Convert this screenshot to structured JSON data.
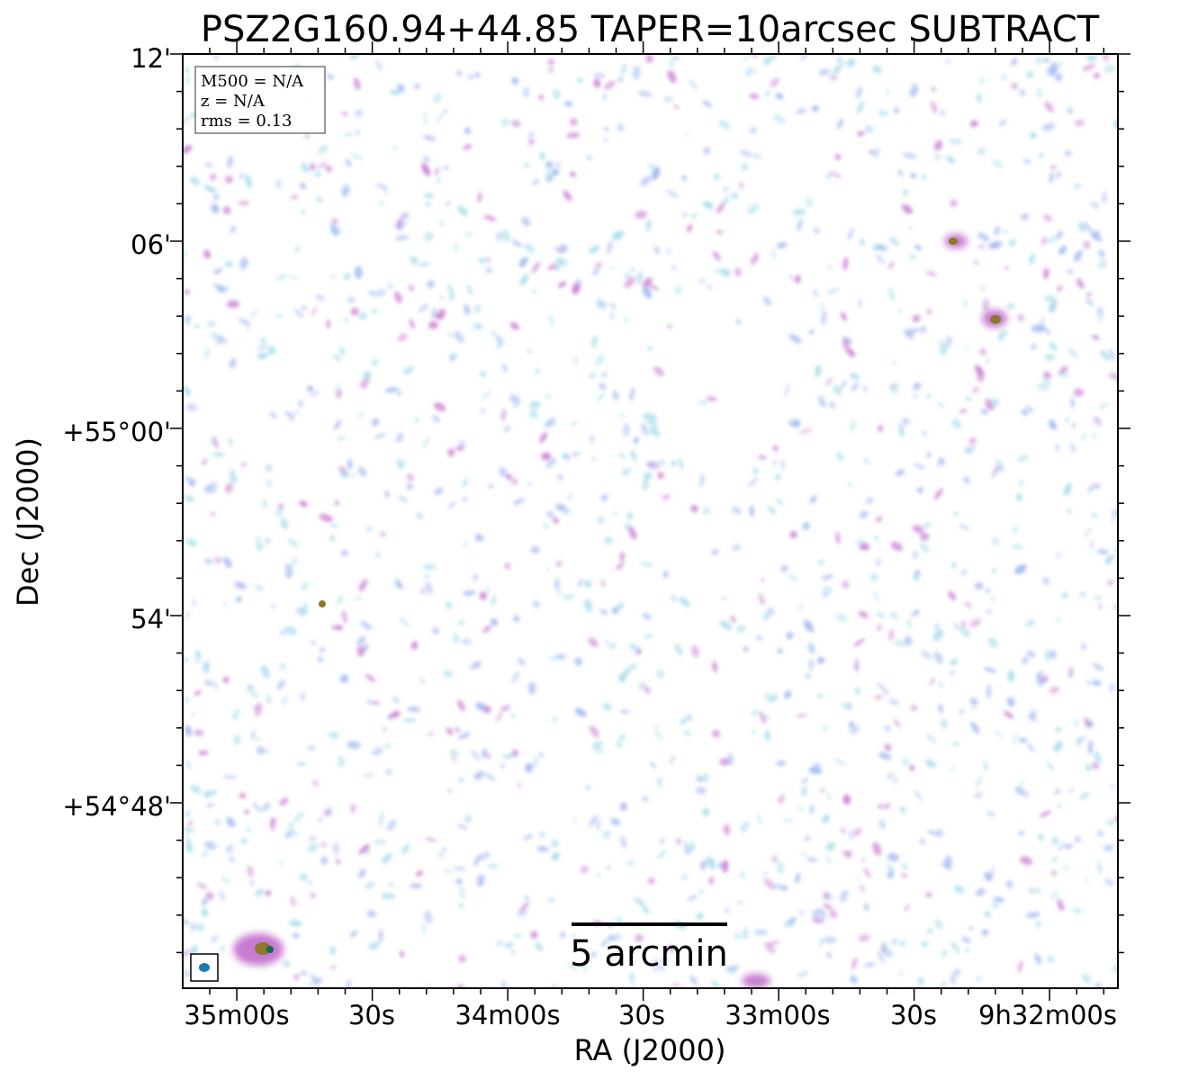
{
  "title": "PSZ2G160.94+44.85 TAPER=10arcsec SUBTRACT",
  "axes": {
    "xlabel": "RA (J2000)",
    "ylabel": "Dec (J2000)",
    "x_ticks": [
      "35m00s",
      "30s",
      "34m00s",
      "30s",
      "33m00s",
      "30s",
      "9h32m00s"
    ],
    "y_ticks": [
      "12'",
      "06'",
      "+55°00'",
      "54'",
      "+54°48'"
    ]
  },
  "info_box": {
    "m500": "M500 = N/A",
    "z": "z = N/A",
    "rms": "rms = 0.13"
  },
  "scale_bar": {
    "label": "5 arcmin"
  },
  "colors": {
    "noise_light": "#a8dcea",
    "noise_mid": "#9fb6f0",
    "noise_strong": "#c77bcf",
    "source_core": "#8a7a2a",
    "source_peak": "#0e6b55",
    "beam": "#1f77b4"
  }
}
